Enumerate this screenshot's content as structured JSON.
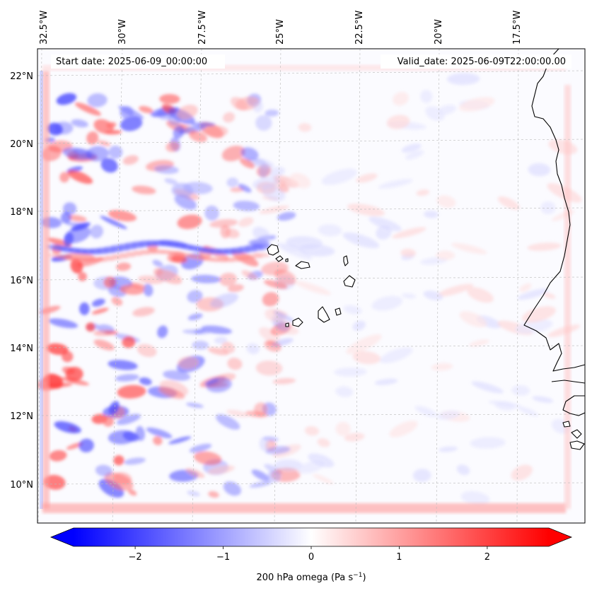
{
  "map": {
    "start_date": "Start date: 2025-06-09_00:00:00",
    "valid_date": "Valid_date: 2025-06-09T22:00:00.00",
    "lon_labels": [
      "32.5°W",
      "30°W",
      "27.5°W",
      "25°W",
      "22.5°W",
      "20°W",
      "17.5°W"
    ],
    "lat_labels": [
      "22°N",
      "20°N",
      "18°N",
      "16°N",
      "14°N",
      "12°N",
      "10°N"
    ],
    "gridlines": true,
    "coastline_color": "#000000"
  },
  "colorbar": {
    "colormap": "bwr",
    "range": [
      -2.7,
      2.7
    ],
    "extend": "both",
    "ticks": [
      {
        "value": -2,
        "label": "−2"
      },
      {
        "value": -1,
        "label": "−1"
      },
      {
        "value": 0,
        "label": "0"
      },
      {
        "value": 1,
        "label": "1"
      },
      {
        "value": 2,
        "label": "2"
      }
    ],
    "label_main": "200 hPa omega (Pa s",
    "label_sup": "−1",
    "label_end": ")"
  },
  "colors": {
    "negative": "#0000ff",
    "zero": "#ffffff",
    "positive": "#ff0000"
  }
}
